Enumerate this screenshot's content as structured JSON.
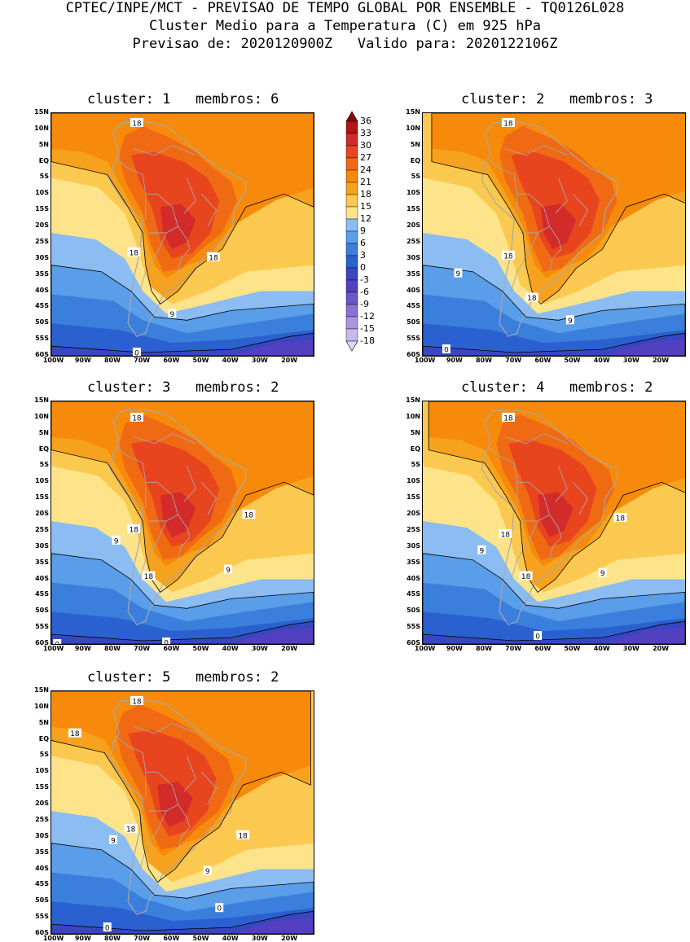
{
  "header": {
    "line1": "CPTEC/INPE/MCT - PREVISAO DE TEMPO GLOBAL POR ENSEMBLE - TQ0126L028",
    "line2": "Cluster Medio para a Temperatura (C) em 925 hPa",
    "line3": "Previsao de: 2020120900Z   Valido para: 2020122106Z"
  },
  "colorbar": {
    "labels": [
      "36",
      "33",
      "30",
      "27",
      "24",
      "21",
      "18",
      "15",
      "12",
      "9",
      "6",
      "3",
      "0",
      "-3",
      "-6",
      "-9",
      "-12",
      "-15",
      "-18"
    ],
    "colors": [
      "#8b0a0a",
      "#b31414",
      "#d32a2a",
      "#e8451f",
      "#f06a14",
      "#f78a0a",
      "#f7a21f",
      "#fbc94f",
      "#fde38a",
      "#8bbdf2",
      "#5a9de8",
      "#3b7fdc",
      "#2b60d0",
      "#3846c2",
      "#5240c0",
      "#6d55c8",
      "#8a72d2",
      "#a896de",
      "#c9b8ec",
      "#e2d8f6"
    ]
  },
  "axes": {
    "y_ticks": [
      "15N",
      "10N",
      "5N",
      "EQ",
      "5S",
      "10S",
      "15S",
      "20S",
      "25S",
      "30S",
      "35S",
      "40S",
      "45S",
      "50S",
      "55S",
      "60S"
    ],
    "x_ticks": [
      "100W",
      "90W",
      "80W",
      "70W",
      "60W",
      "50W",
      "40W",
      "30W",
      "20W"
    ]
  },
  "panels": [
    {
      "title": "cluster: 1   membros: 6",
      "contour_labels": [
        {
          "text": "18",
          "lat": 12,
          "lon": -72
        },
        {
          "text": "18",
          "lat": -28,
          "lon": -73
        },
        {
          "text": "18",
          "lat": -29.5,
          "lon": -46
        },
        {
          "text": "9",
          "lat": -47,
          "lon": -60
        },
        {
          "text": "0",
          "lat": -59,
          "lon": -72
        }
      ]
    },
    {
      "title": "cluster: 2   membros: 3",
      "contour_labels": [
        {
          "text": "18",
          "lat": 12,
          "lon": -72
        },
        {
          "text": "18",
          "lat": -29,
          "lon": -72
        },
        {
          "text": "18",
          "lat": -42,
          "lon": -64
        },
        {
          "text": "9",
          "lat": -34.5,
          "lon": -89
        },
        {
          "text": "9",
          "lat": -49,
          "lon": -51
        },
        {
          "text": "0",
          "lat": -58,
          "lon": -93
        }
      ]
    },
    {
      "title": "cluster: 3   membros: 2",
      "contour_labels": [
        {
          "text": "18",
          "lat": 10,
          "lon": -72
        },
        {
          "text": "18",
          "lat": -24.5,
          "lon": -73
        },
        {
          "text": "18",
          "lat": -39,
          "lon": -68
        },
        {
          "text": "18",
          "lat": -20,
          "lon": -34
        },
        {
          "text": "9",
          "lat": -28,
          "lon": -79
        },
        {
          "text": "9",
          "lat": -37,
          "lon": -41
        },
        {
          "text": "0",
          "lat": -59.5,
          "lon": -62
        },
        {
          "text": "0",
          "lat": -60,
          "lon": -99
        }
      ]
    },
    {
      "title": "cluster: 4   membros: 2",
      "contour_labels": [
        {
          "text": "18",
          "lat": 10,
          "lon": -72
        },
        {
          "text": "18",
          "lat": -26,
          "lon": -73
        },
        {
          "text": "18",
          "lat": -39,
          "lon": -66
        },
        {
          "text": "18",
          "lat": -21,
          "lon": -34
        },
        {
          "text": "9",
          "lat": -31,
          "lon": -81
        },
        {
          "text": "9",
          "lat": -38,
          "lon": -40
        },
        {
          "text": "0",
          "lat": -57.5,
          "lon": -62
        }
      ]
    },
    {
      "title": "cluster: 5   membros: 2",
      "contour_labels": [
        {
          "text": "18",
          "lat": 12,
          "lon": -72
        },
        {
          "text": "18",
          "lat": 2,
          "lon": -93
        },
        {
          "text": "18",
          "lat": -27.5,
          "lon": -74
        },
        {
          "text": "18",
          "lat": -29.5,
          "lon": -36
        },
        {
          "text": "9",
          "lat": -31,
          "lon": -80
        },
        {
          "text": "9",
          "lat": -40.5,
          "lon": -48
        },
        {
          "text": "0",
          "lat": -52,
          "lon": -44
        },
        {
          "text": "0",
          "lat": -58,
          "lon": -82
        }
      ]
    }
  ]
}
